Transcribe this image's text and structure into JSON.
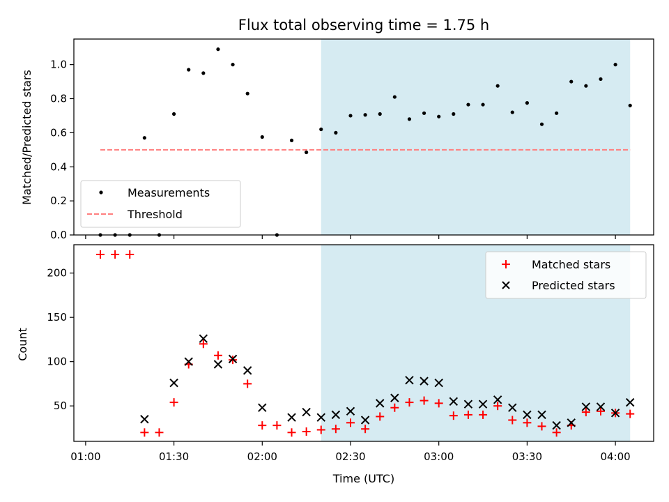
{
  "chart_data": [
    {
      "type": "scatter",
      "title": "Flux total observing time = 1.75 h",
      "ylabel": "Matched/Predicted stars",
      "xlabel": "",
      "xlim": [
        "00:56",
        "04:13"
      ],
      "ylim": [
        0,
        1.15
      ],
      "yticks": [
        "0.0",
        "0.2",
        "0.4",
        "0.6",
        "0.8",
        "1.0"
      ],
      "shaded_region": {
        "start": "02:20",
        "end": "04:05",
        "color": "#add8e6"
      },
      "legend": {
        "position": "lower-left",
        "entries": [
          "Measurements",
          "Threshold"
        ]
      },
      "series": [
        {
          "name": "Measurements",
          "marker": "dot",
          "color": "#000000",
          "x": [
            "01:05",
            "01:10",
            "01:15",
            "01:20",
            "01:25",
            "01:30",
            "01:35",
            "01:40",
            "01:45",
            "01:50",
            "01:55",
            "02:00",
            "02:05",
            "02:10",
            "02:15",
            "02:20",
            "02:25",
            "02:30",
            "02:35",
            "02:40",
            "02:45",
            "02:50",
            "02:55",
            "03:00",
            "03:05",
            "03:10",
            "03:15",
            "03:20",
            "03:25",
            "03:30",
            "03:35",
            "03:40",
            "03:45",
            "03:50",
            "03:55",
            "04:00",
            "04:05"
          ],
          "y": [
            0,
            0,
            0,
            0.57,
            0,
            0.71,
            0.97,
            0.95,
            1.09,
            1.0,
            0.83,
            0.575,
            0,
            0.555,
            0.485,
            0.62,
            0.6,
            0.7,
            0.705,
            0.71,
            0.81,
            0.68,
            0.715,
            0.695,
            0.71,
            0.765,
            0.765,
            0.875,
            0.72,
            0.775,
            0.65,
            0.715,
            0.9,
            0.875,
            0.915,
            1.0,
            0.76
          ]
        },
        {
          "name": "Threshold",
          "style": "dashed",
          "color": "#ff7f7f",
          "x": [
            "01:05",
            "04:05"
          ],
          "y": [
            0.5,
            0.5
          ]
        }
      ]
    },
    {
      "type": "scatter",
      "title": "",
      "ylabel": "Count",
      "xlabel": "Time (UTC)",
      "xlim": [
        "00:56",
        "04:13"
      ],
      "ylim": [
        10,
        232
      ],
      "yticks": [
        "50",
        "100",
        "150",
        "200"
      ],
      "xticks": [
        "01:00",
        "01:30",
        "02:00",
        "02:30",
        "03:00",
        "03:30",
        "04:00"
      ],
      "shaded_region": {
        "start": "02:20",
        "end": "04:05",
        "color": "#add8e6"
      },
      "legend": {
        "position": "upper-right",
        "entries": [
          "Matched stars",
          "Predicted stars"
        ]
      },
      "series": [
        {
          "name": "Matched stars",
          "marker": "plus",
          "color": "#ff0000",
          "x": [
            "01:05",
            "01:10",
            "01:15",
            "01:20",
            "01:25",
            "01:30",
            "01:35",
            "01:40",
            "01:45",
            "01:50",
            "01:55",
            "02:00",
            "02:05",
            "02:10",
            "02:15",
            "02:20",
            "02:25",
            "02:30",
            "02:35",
            "02:40",
            "02:45",
            "02:50",
            "02:55",
            "03:00",
            "03:05",
            "03:10",
            "03:15",
            "03:20",
            "03:25",
            "03:30",
            "03:35",
            "03:40",
            "03:45",
            "03:50",
            "03:55",
            "04:00",
            "04:05"
          ],
          "y": [
            221,
            221,
            221,
            20,
            20,
            54,
            97,
            120,
            107,
            102,
            75,
            28,
            28,
            20,
            21,
            23,
            24,
            31,
            24,
            38,
            48,
            54,
            56,
            53,
            39,
            40,
            40,
            50,
            34,
            31,
            27,
            20,
            28,
            43,
            44,
            42,
            41
          ]
        },
        {
          "name": "Predicted stars",
          "marker": "x",
          "color": "#000000",
          "x": [
            "01:20",
            "01:30",
            "01:35",
            "01:40",
            "01:45",
            "01:50",
            "01:55",
            "02:00",
            "02:10",
            "02:15",
            "02:20",
            "02:25",
            "02:30",
            "02:35",
            "02:40",
            "02:45",
            "02:50",
            "02:55",
            "03:00",
            "03:05",
            "03:10",
            "03:15",
            "03:20",
            "03:25",
            "03:30",
            "03:35",
            "03:40",
            "03:45",
            "03:50",
            "03:55",
            "04:00",
            "04:05"
          ],
          "y": [
            35,
            76,
            100,
            126,
            97,
            103,
            90,
            48,
            37,
            43,
            37,
            40,
            44,
            34,
            53,
            59,
            79,
            78,
            76,
            55,
            52,
            52,
            57,
            48,
            40,
            40,
            28,
            31,
            49,
            49,
            42,
            54
          ]
        }
      ]
    }
  ]
}
